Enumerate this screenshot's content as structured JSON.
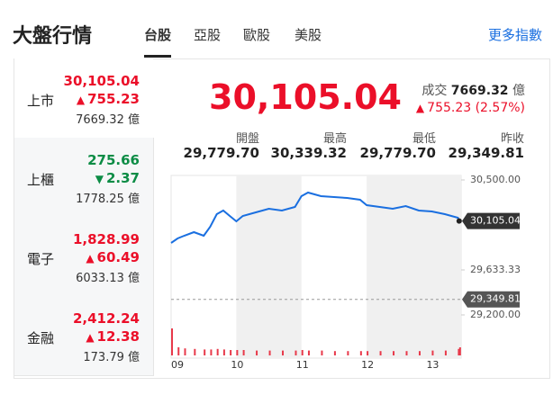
{
  "header": {
    "title": "大盤行情",
    "tabs": [
      "台股",
      "亞股",
      "歐股",
      "美股"
    ],
    "active_tab": 0,
    "more": "更多指數"
  },
  "indices": [
    {
      "name": "上市",
      "value": "30,105.04",
      "change": "755.23",
      "direction": "up",
      "volume": "7669.32 億"
    },
    {
      "name": "上櫃",
      "value": "275.66",
      "change": "2.37",
      "direction": "down",
      "volume": "1778.25 億"
    },
    {
      "name": "電子",
      "value": "1,828.99",
      "change": "60.49",
      "direction": "up",
      "volume": "6033.13 億"
    },
    {
      "name": "金融",
      "value": "2,412.24",
      "change": "12.38",
      "direction": "up",
      "volume": "173.79 億"
    }
  ],
  "summary": {
    "price": "30,105.04",
    "volume_label": "成交",
    "volume": "7669.32",
    "volume_unit": "億",
    "change": "755.23 (2.57%)",
    "direction": "up",
    "stats": [
      {
        "label": "開盤",
        "value": "29,779.70"
      },
      {
        "label": "最高",
        "value": "30,339.32"
      },
      {
        "label": "最低",
        "value": "29,779.70"
      },
      {
        "label": "昨收",
        "value": "29,349.81"
      }
    ]
  },
  "chart": {
    "type": "line",
    "color": "#1a6fe0",
    "volume_color": "#e8394a",
    "x": [
      9.0,
      9.1,
      9.2,
      9.35,
      9.5,
      9.6,
      9.7,
      9.8,
      9.9,
      10.0,
      10.1,
      10.3,
      10.5,
      10.7,
      10.9,
      11.0,
      11.1,
      11.3,
      11.5,
      11.7,
      11.9,
      12.0,
      12.2,
      12.4,
      12.6,
      12.8,
      13.0,
      13.2,
      13.4,
      13.42
    ],
    "values": [
      29893,
      29937,
      29963,
      29997,
      29963,
      30049,
      30171,
      30205,
      30153,
      30101,
      30153,
      30188,
      30223,
      30205,
      30240,
      30344,
      30379,
      30344,
      30335,
      30327,
      30309,
      30257,
      30240,
      30223,
      30249,
      30205,
      30197,
      30171,
      30136,
      30105.04
    ],
    "volumes": [
      100,
      30,
      26,
      24,
      22,
      22,
      24,
      22,
      20,
      20,
      20,
      18,
      18,
      18,
      18,
      20,
      18,
      18,
      16,
      16,
      16,
      16,
      16,
      16,
      16,
      16,
      18,
      18,
      24,
      30
    ],
    "volume_lim": [
      0,
      100
    ],
    "xlim": [
      9,
      13.45
    ],
    "ylim": [
      29200,
      30500
    ],
    "xticks": [
      {
        "value": 9,
        "label": "09"
      },
      {
        "value": 10,
        "label": "10"
      },
      {
        "value": 11,
        "label": "11"
      },
      {
        "value": 12,
        "label": "12"
      },
      {
        "value": 13,
        "label": "13"
      }
    ],
    "yticks": [
      {
        "value": 30500,
        "label": "30,500.00"
      },
      {
        "value": 29633.33,
        "label": "29,633.33"
      },
      {
        "value": 29200,
        "label": "29,200.00"
      }
    ],
    "previous_close": {
      "value": 29349.81,
      "label": "29,349.81"
    },
    "last": {
      "value": 30105.04,
      "label": "30,105.04"
    }
  }
}
